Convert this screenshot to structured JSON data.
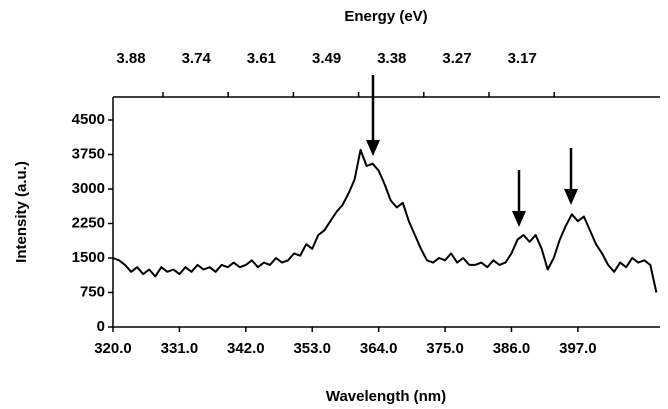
{
  "chart_data": {
    "type": "line",
    "x_label": "Wavelength (nm)",
    "y_label": "Intensity (a.u.)",
    "x2_label": "Energy (eV)",
    "x": [
      320,
      321,
      322,
      323,
      324,
      325,
      326,
      327,
      328,
      329,
      330,
      331,
      332,
      333,
      334,
      335,
      336,
      337,
      338,
      339,
      340,
      341,
      342,
      343,
      344,
      345,
      346,
      347,
      348,
      349,
      350,
      351,
      352,
      353,
      354,
      355,
      356,
      357,
      358,
      359,
      360,
      361,
      362,
      363,
      364,
      365,
      366,
      367,
      368,
      369,
      370,
      371,
      372,
      373,
      374,
      375,
      376,
      377,
      378,
      379,
      380,
      381,
      382,
      383,
      384,
      385,
      386,
      387,
      388,
      389,
      390,
      391,
      392,
      393,
      394,
      395,
      396,
      397,
      398,
      399,
      400,
      401,
      402,
      403,
      404,
      405,
      406,
      407,
      408,
      409,
      410
    ],
    "series": [
      {
        "color": "#000000",
        "values": [
          1500,
          1450,
          1350,
          1200,
          1300,
          1150,
          1250,
          1100,
          1300,
          1200,
          1250,
          1150,
          1300,
          1200,
          1350,
          1250,
          1300,
          1200,
          1350,
          1300,
          1400,
          1300,
          1350,
          1450,
          1300,
          1400,
          1350,
          1500,
          1400,
          1450,
          1600,
          1550,
          1800,
          1700,
          2000,
          2100,
          2300,
          2500,
          2650,
          2900,
          3200,
          3850,
          3500,
          3550,
          3400,
          3100,
          2750,
          2600,
          2700,
          2300,
          2000,
          1700,
          1450,
          1400,
          1500,
          1450,
          1600,
          1400,
          1500,
          1350,
          1350,
          1400,
          1300,
          1450,
          1350,
          1400,
          1600,
          1900,
          2000,
          1850,
          2000,
          1700,
          1250,
          1500,
          1900,
          2200,
          2450,
          2300,
          2400,
          2100,
          1800,
          1600,
          1350,
          1200,
          1400,
          1300,
          1500,
          1400,
          1450,
          1350,
          750
        ]
      }
    ],
    "xlim": [
      320,
      410.6
    ],
    "xticks": [
      {
        "value": 320,
        "label": "320.0"
      },
      {
        "value": 331,
        "label": "331.0"
      },
      {
        "value": 342,
        "label": "342.0"
      },
      {
        "value": 353,
        "label": "353.0"
      },
      {
        "value": 364,
        "label": "364.0"
      },
      {
        "value": 375,
        "label": "375.0"
      },
      {
        "value": 386,
        "label": "386.0"
      },
      {
        "value": 397,
        "label": "397.0"
      }
    ],
    "ylim": [
      0,
      5000
    ],
    "yticks": [
      0,
      750,
      1500,
      2250,
      3000,
      3750,
      4500
    ],
    "x2ticks": [
      3.88,
      3.74,
      3.61,
      3.49,
      3.38,
      3.27,
      3.17
    ]
  }
}
